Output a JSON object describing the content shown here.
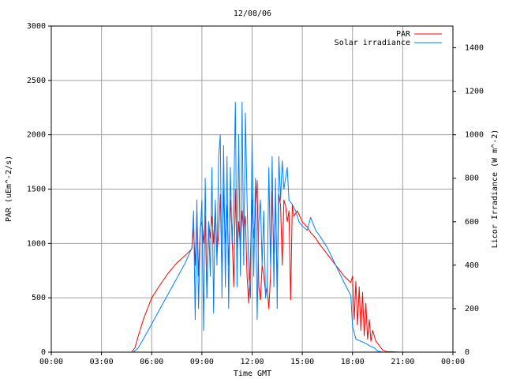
{
  "chart_data": {
    "type": "line",
    "title": "12/08/06",
    "xlabel": "Time GMT",
    "ylabel_left": "PAR (uEm^-2/s)",
    "ylabel_right": "Licor Irradiance (W m^-2)",
    "x_ticks": [
      "00:00",
      "03:00",
      "06:00",
      "09:00",
      "12:00",
      "15:00",
      "18:00",
      "21:00",
      "00:00"
    ],
    "xlim_hours": [
      0,
      24
    ],
    "y_left": {
      "lim": [
        0,
        3000
      ],
      "ticks": [
        "0",
        "500",
        "1000",
        "1500",
        "2000",
        "2500",
        "3000"
      ]
    },
    "y_right": {
      "lim": [
        0,
        1500
      ],
      "ticks": [
        "0",
        "200",
        "400",
        "600",
        "800",
        "1000",
        "1200",
        "1400"
      ]
    },
    "grid": true,
    "legend_position": "top-right",
    "series": [
      {
        "name": "PAR",
        "color": "#ff0000",
        "axis": "left",
        "x": [
          0,
          4.8,
          5.0,
          5.2,
          5.5,
          6.0,
          6.5,
          7.0,
          7.5,
          8.0,
          8.4,
          8.5,
          8.6,
          8.7,
          8.8,
          8.9,
          9.0,
          9.1,
          9.2,
          9.3,
          9.4,
          9.5,
          9.6,
          9.7,
          9.8,
          9.9,
          10.0,
          10.1,
          10.2,
          10.3,
          10.4,
          10.5,
          10.6,
          10.7,
          10.8,
          10.9,
          11.0,
          11.1,
          11.2,
          11.3,
          11.4,
          11.5,
          11.6,
          11.7,
          11.8,
          11.9,
          12.0,
          12.1,
          12.2,
          12.3,
          12.4,
          12.5,
          12.6,
          12.7,
          12.8,
          12.9,
          13.0,
          13.1,
          13.2,
          13.3,
          13.4,
          13.5,
          13.6,
          13.7,
          13.8,
          13.9,
          14.0,
          14.1,
          14.2,
          14.3,
          14.4,
          14.5,
          14.7,
          15.0,
          15.3,
          15.5,
          15.8,
          16.0,
          16.5,
          17.0,
          17.5,
          17.9,
          18.0,
          18.1,
          18.2,
          18.3,
          18.4,
          18.5,
          18.6,
          18.7,
          18.8,
          18.9,
          19.0,
          19.1,
          19.2,
          19.4,
          19.6,
          19.8,
          20.0,
          21.0,
          24.0
        ],
        "y": [
          0,
          0,
          40,
          150,
          300,
          500,
          620,
          730,
          820,
          890,
          950,
          1150,
          800,
          1300,
          700,
          1150,
          1200,
          1000,
          1250,
          500,
          1200,
          1050,
          1250,
          1000,
          1350,
          900,
          1100,
          1450,
          700,
          1500,
          1000,
          1350,
          800,
          1400,
          1100,
          600,
          1500,
          850,
          1200,
          950,
          1300,
          1100,
          1250,
          700,
          450,
          900,
          1400,
          1050,
          1300,
          1580,
          600,
          480,
          800,
          700,
          550,
          600,
          400,
          700,
          1480,
          900,
          1400,
          600,
          1450,
          1350,
          800,
          1400,
          1350,
          1200,
          1300,
          480,
          1350,
          1250,
          1300,
          1200,
          1150,
          1100,
          1050,
          1000,
          900,
          800,
          700,
          640,
          700,
          300,
          650,
          250,
          600,
          200,
          550,
          150,
          450,
          120,
          300,
          100,
          200,
          100,
          60,
          20,
          5,
          0,
          0
        ]
      },
      {
        "name": "Solar irradiance",
        "color": "#0080ff",
        "axis": "right",
        "x": [
          0,
          4.9,
          5.2,
          5.5,
          6.0,
          6.5,
          7.0,
          7.5,
          8.0,
          8.4,
          8.5,
          8.6,
          8.7,
          8.8,
          8.9,
          9.0,
          9.1,
          9.2,
          9.3,
          9.4,
          9.5,
          9.6,
          9.7,
          9.8,
          9.9,
          10.0,
          10.1,
          10.2,
          10.3,
          10.4,
          10.5,
          10.6,
          10.7,
          10.8,
          10.9,
          11.0,
          11.1,
          11.2,
          11.3,
          11.4,
          11.5,
          11.6,
          11.7,
          11.8,
          11.9,
          12.0,
          12.1,
          12.2,
          12.3,
          12.4,
          12.5,
          12.6,
          12.7,
          12.8,
          12.9,
          13.0,
          13.1,
          13.2,
          13.3,
          13.4,
          13.5,
          13.6,
          13.7,
          13.8,
          13.9,
          14.0,
          14.1,
          14.2,
          14.4,
          14.6,
          14.8,
          15.0,
          15.3,
          15.5,
          15.8,
          16.0,
          16.5,
          17.0,
          17.5,
          17.9,
          18.0,
          18.2,
          18.5,
          18.8,
          19.0,
          19.3,
          19.5,
          19.8,
          20.0,
          21.0,
          24.0
        ],
        "y": [
          0,
          0,
          20,
          60,
          130,
          200,
          270,
          340,
          410,
          480,
          650,
          150,
          700,
          200,
          550,
          700,
          100,
          800,
          250,
          600,
          350,
          850,
          180,
          700,
          400,
          900,
          1000,
          250,
          950,
          300,
          900,
          200,
          850,
          500,
          700,
          1150,
          300,
          1000,
          350,
          1150,
          400,
          1100,
          700,
          350,
          250,
          1000,
          350,
          800,
          150,
          600,
          700,
          400,
          650,
          250,
          300,
          850,
          400,
          900,
          300,
          800,
          200,
          900,
          700,
          880,
          750,
          800,
          850,
          700,
          680,
          650,
          600,
          580,
          560,
          620,
          560,
          540,
          480,
          400,
          320,
          260,
          120,
          60,
          50,
          40,
          30,
          20,
          5,
          0,
          0,
          0,
          0
        ]
      }
    ]
  }
}
